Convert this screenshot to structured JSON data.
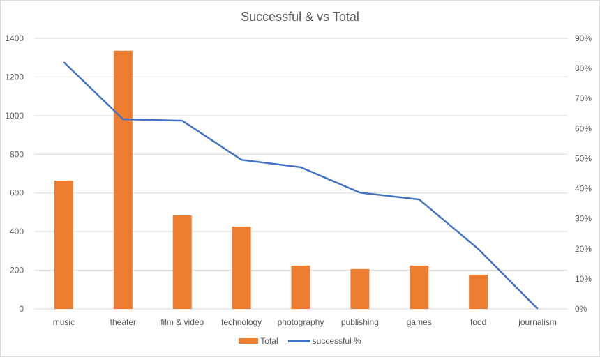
{
  "chart_data": {
    "type": "bar+line",
    "title": "Successful & vs Total",
    "categories": [
      "music",
      "theater",
      "film & video",
      "technology",
      "photography",
      "publishing",
      "games",
      "food",
      "journalism"
    ],
    "series": [
      {
        "name": "Total",
        "type": "bar",
        "axis": "left",
        "color": "#ED7D31",
        "values": [
          664,
          1336,
          484,
          426,
          224,
          206,
          224,
          177,
          0
        ]
      },
      {
        "name": "successful %",
        "type": "line",
        "axis": "right",
        "color": "#4472C4",
        "values": [
          0.821,
          0.631,
          0.626,
          0.496,
          0.471,
          0.387,
          0.364,
          0.199,
          0.0
        ]
      }
    ],
    "left_axis": {
      "min": 0,
      "max": 1400,
      "step": 200,
      "ticks": [
        "0",
        "200",
        "400",
        "600",
        "800",
        "1000",
        "1200",
        "1400"
      ]
    },
    "right_axis": {
      "min": 0,
      "max": 0.9,
      "step": 0.1,
      "ticks": [
        "0%",
        "10%",
        "20%",
        "30%",
        "40%",
        "50%",
        "60%",
        "70%",
        "80%",
        "90%"
      ]
    },
    "xlabel": "",
    "ylabel": "",
    "grid": true,
    "legend_position": "bottom"
  },
  "legend": {
    "bar_label": "Total",
    "line_label": "successful %"
  }
}
